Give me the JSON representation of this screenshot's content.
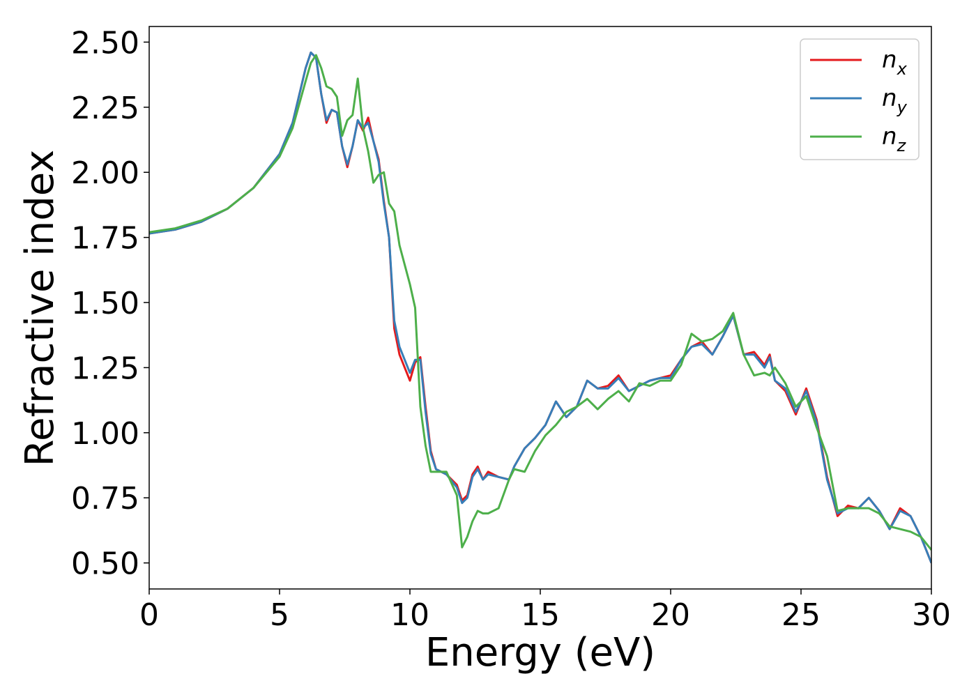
{
  "chart_data": {
    "type": "line",
    "xlabel": "Energy (eV)",
    "ylabel": "Refractive index",
    "xlim": [
      0,
      30
    ],
    "xticks": [
      0,
      5,
      10,
      15,
      20,
      25,
      30
    ],
    "ylim": [
      0.4,
      2.56
    ],
    "yticks": [
      {
        "value": 0.5,
        "label": "0.50"
      },
      0.75,
      {
        "value": 1.0,
        "label": "1.00"
      },
      1.25,
      {
        "value": 1.5,
        "label": "1.50"
      },
      1.75,
      {
        "value": 2.0,
        "label": "2.00"
      },
      2.25,
      {
        "value": 2.5,
        "label": "2.50"
      }
    ],
    "legend": "upper right",
    "x": [
      0,
      1,
      2,
      3,
      4,
      5,
      5.5,
      6,
      6.2,
      6.4,
      6.6,
      6.8,
      7.0,
      7.2,
      7.4,
      7.6,
      7.8,
      8.0,
      8.2,
      8.4,
      8.6,
      8.8,
      9.0,
      9.2,
      9.4,
      9.6,
      10.0,
      10.2,
      10.4,
      10.6,
      10.8,
      11.0,
      11.4,
      11.8,
      12.0,
      12.2,
      12.4,
      12.6,
      12.8,
      13.0,
      13.4,
      13.8,
      14.0,
      14.4,
      14.8,
      15.2,
      15.6,
      16.0,
      16.4,
      16.8,
      17.2,
      17.6,
      18.0,
      18.4,
      18.8,
      19.2,
      19.6,
      20.0,
      20.4,
      20.8,
      21.2,
      21.6,
      22.0,
      22.4,
      22.8,
      23.2,
      23.6,
      23.8,
      24.0,
      24.4,
      24.8,
      25.2,
      25.6,
      26.0,
      26.4,
      26.8,
      27.2,
      27.6,
      28.0,
      28.4,
      28.8,
      29.2,
      29.6,
      30
    ],
    "series": [
      {
        "name": "n_x",
        "color": "#e41a1c",
        "values": [
          1.765,
          1.78,
          1.81,
          1.86,
          1.94,
          2.07,
          2.19,
          2.4,
          2.46,
          2.44,
          2.3,
          2.19,
          2.24,
          2.23,
          2.1,
          2.02,
          2.1,
          2.2,
          2.16,
          2.21,
          2.12,
          2.05,
          1.89,
          1.75,
          1.4,
          1.3,
          1.2,
          1.27,
          1.29,
          1.1,
          0.93,
          0.86,
          0.84,
          0.8,
          0.74,
          0.76,
          0.84,
          0.87,
          0.82,
          0.85,
          0.83,
          0.82,
          0.87,
          0.94,
          0.98,
          1.03,
          1.12,
          1.06,
          1.1,
          1.2,
          1.17,
          1.18,
          1.22,
          1.16,
          1.18,
          1.2,
          1.21,
          1.22,
          1.28,
          1.33,
          1.35,
          1.3,
          1.37,
          1.45,
          1.3,
          1.31,
          1.26,
          1.3,
          1.2,
          1.16,
          1.07,
          1.17,
          1.05,
          0.83,
          0.68,
          0.72,
          0.71,
          0.75,
          0.7,
          0.63,
          0.71,
          0.68,
          0.6,
          0.5
        ]
      },
      {
        "name": "n_y",
        "color": "#377eb8",
        "values": [
          1.765,
          1.78,
          1.81,
          1.86,
          1.94,
          2.07,
          2.19,
          2.4,
          2.46,
          2.44,
          2.3,
          2.2,
          2.24,
          2.23,
          2.1,
          2.03,
          2.1,
          2.2,
          2.17,
          2.19,
          2.12,
          2.04,
          1.88,
          1.75,
          1.43,
          1.33,
          1.23,
          1.28,
          1.28,
          1.08,
          0.92,
          0.86,
          0.84,
          0.79,
          0.73,
          0.75,
          0.83,
          0.86,
          0.82,
          0.84,
          0.83,
          0.82,
          0.87,
          0.94,
          0.98,
          1.03,
          1.12,
          1.06,
          1.1,
          1.2,
          1.17,
          1.17,
          1.21,
          1.16,
          1.18,
          1.2,
          1.21,
          1.21,
          1.28,
          1.33,
          1.34,
          1.3,
          1.37,
          1.45,
          1.3,
          1.3,
          1.25,
          1.29,
          1.2,
          1.17,
          1.08,
          1.16,
          1.04,
          0.82,
          0.69,
          0.71,
          0.71,
          0.75,
          0.7,
          0.63,
          0.7,
          0.68,
          0.6,
          0.5
        ]
      },
      {
        "name": "n_z",
        "color": "#4daf4a",
        "values": [
          1.77,
          1.785,
          1.815,
          1.86,
          1.94,
          2.06,
          2.17,
          2.35,
          2.42,
          2.45,
          2.4,
          2.33,
          2.32,
          2.29,
          2.14,
          2.2,
          2.22,
          2.36,
          2.17,
          2.08,
          1.96,
          1.99,
          2.0,
          1.88,
          1.85,
          1.72,
          1.57,
          1.48,
          1.1,
          0.95,
          0.85,
          0.85,
          0.85,
          0.76,
          0.56,
          0.6,
          0.66,
          0.7,
          0.69,
          0.69,
          0.71,
          0.82,
          0.86,
          0.85,
          0.93,
          0.99,
          1.03,
          1.08,
          1.1,
          1.13,
          1.09,
          1.13,
          1.16,
          1.12,
          1.19,
          1.18,
          1.2,
          1.2,
          1.26,
          1.38,
          1.35,
          1.36,
          1.39,
          1.46,
          1.3,
          1.22,
          1.23,
          1.22,
          1.25,
          1.19,
          1.1,
          1.14,
          1.02,
          0.91,
          0.7,
          0.71,
          0.71,
          0.71,
          0.69,
          0.64,
          0.63,
          0.62,
          0.6,
          0.55
        ]
      }
    ]
  }
}
